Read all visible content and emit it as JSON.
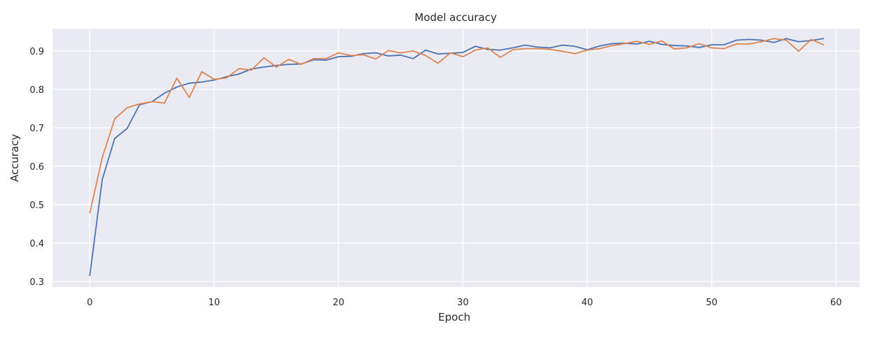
{
  "chart_data": {
    "type": "line",
    "title": "Model accuracy",
    "xlabel": "Epoch",
    "ylabel": "Accuracy",
    "xlim": [
      -3.0,
      61.9
    ],
    "ylim": [
      0.285,
      0.958
    ],
    "xticks": [
      0,
      10,
      20,
      30,
      40,
      50,
      60
    ],
    "yticks": [
      0.3,
      0.4,
      0.5,
      0.6,
      0.7,
      0.8,
      0.9
    ],
    "grid": true,
    "legend": "none",
    "colors": {
      "background": "#EAEAF2",
      "grid": "#FFFFFF",
      "series_1": "#4C72B0",
      "series_2": "#DD8452"
    },
    "x": [
      0,
      1,
      2,
      3,
      4,
      5,
      6,
      7,
      8,
      9,
      10,
      11,
      12,
      13,
      14,
      15,
      16,
      17,
      18,
      19,
      20,
      21,
      22,
      23,
      24,
      25,
      26,
      27,
      28,
      29,
      30,
      31,
      32,
      33,
      34,
      35,
      36,
      37,
      38,
      39,
      40,
      41,
      42,
      43,
      44,
      45,
      46,
      47,
      48,
      49,
      50,
      51,
      52,
      53,
      54,
      55,
      56,
      57,
      58,
      59
    ],
    "series": [
      {
        "values": [
          0.315,
          0.565,
          0.672,
          0.698,
          0.76,
          0.768,
          0.79,
          0.806,
          0.816,
          0.819,
          0.824,
          0.833,
          0.84,
          0.853,
          0.858,
          0.862,
          0.865,
          0.866,
          0.877,
          0.876,
          0.885,
          0.886,
          0.893,
          0.895,
          0.887,
          0.889,
          0.88,
          0.902,
          0.892,
          0.894,
          0.896,
          0.912,
          0.904,
          0.902,
          0.908,
          0.915,
          0.91,
          0.908,
          0.915,
          0.912,
          0.903,
          0.913,
          0.919,
          0.92,
          0.918,
          0.925,
          0.917,
          0.914,
          0.913,
          0.909,
          0.916,
          0.916,
          0.928,
          0.93,
          0.928,
          0.922,
          0.932,
          0.924,
          0.927,
          0.932
        ]
      },
      {
        "values": [
          0.478,
          0.622,
          0.723,
          0.752,
          0.762,
          0.768,
          0.764,
          0.829,
          0.779,
          0.846,
          0.826,
          0.83,
          0.854,
          0.85,
          0.882,
          0.858,
          0.878,
          0.865,
          0.88,
          0.88,
          0.895,
          0.888,
          0.89,
          0.879,
          0.901,
          0.895,
          0.9,
          0.888,
          0.868,
          0.895,
          0.885,
          0.902,
          0.908,
          0.883,
          0.903,
          0.906,
          0.906,
          0.904,
          0.899,
          0.893,
          0.902,
          0.906,
          0.914,
          0.919,
          0.925,
          0.917,
          0.926,
          0.905,
          0.908,
          0.919,
          0.908,
          0.906,
          0.918,
          0.918,
          0.924,
          0.932,
          0.928,
          0.899,
          0.93,
          0.916
        ]
      }
    ]
  }
}
